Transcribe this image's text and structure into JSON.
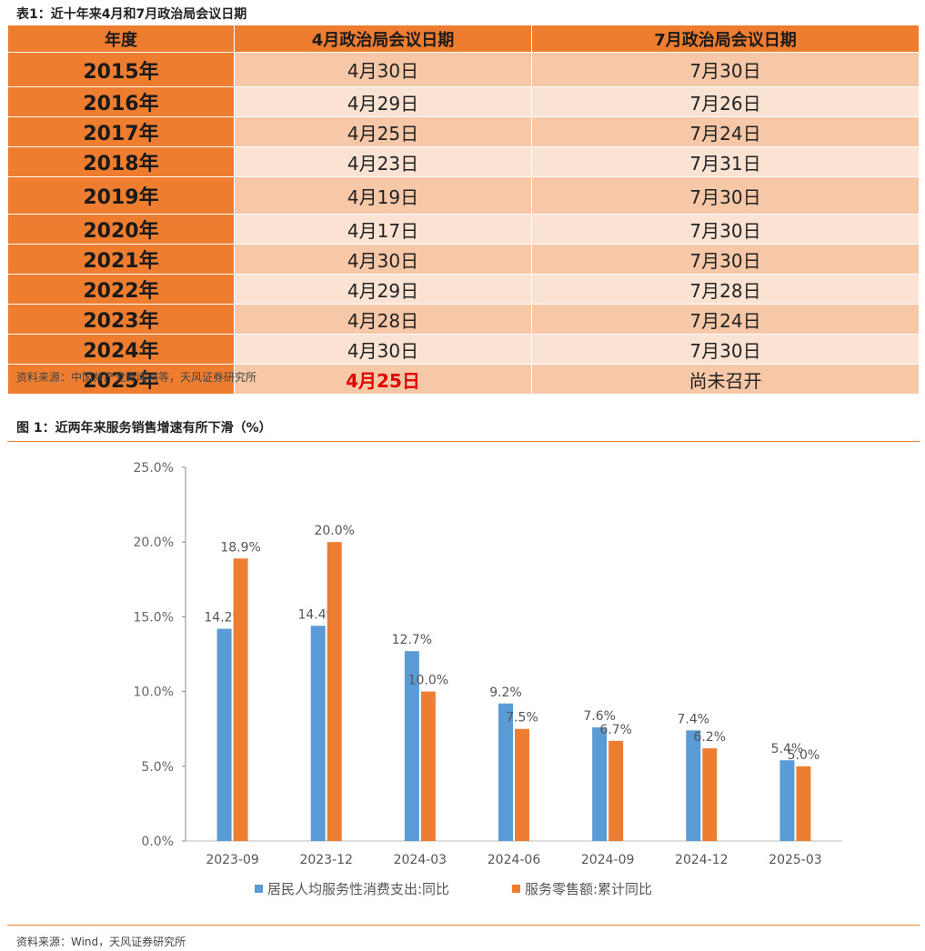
{
  "table": {
    "title": "表1：近十年来4月和7月政治局会议日期",
    "headers": [
      "年度",
      "4月政治局会议日期",
      "7月政治局会议日期"
    ],
    "rows": [
      {
        "year": "2015年",
        "april": "4月30日",
        "july": "7月30日"
      },
      {
        "year": "2016年",
        "april": "4月29日",
        "july": "7月26日"
      },
      {
        "year": "2017年",
        "april": "4月25日",
        "july": "7月24日"
      },
      {
        "year": "2018年",
        "april": "4月23日",
        "july": "7月31日"
      },
      {
        "year": "2019年",
        "april": "4月19日",
        "july": "7月30日"
      },
      {
        "year": "2020年",
        "april": "4月17日",
        "july": "7月30日"
      },
      {
        "year": "2021年",
        "april": "4月30日",
        "july": "7月30日"
      },
      {
        "year": "2022年",
        "april": "4月29日",
        "july": "7月28日"
      },
      {
        "year": "2023年",
        "april": "4月28日",
        "july": "7月24日"
      },
      {
        "year": "2024年",
        "april": "4月30日",
        "july": "7月30日"
      },
      {
        "year": "2025年",
        "april": "4月25日",
        "july": "尚未召开"
      }
    ],
    "highlight_color": "#e00000",
    "source": "资料来源：中国共产党新闻网等，天风证券研究所"
  },
  "figure": {
    "title": "图 1：近两年来服务销售增速有所下滑（%）",
    "source": "资料来源：Wind，天风证券研究所"
  },
  "chart_data": {
    "type": "bar",
    "categories": [
      "2023-09",
      "2023-12",
      "2024-03",
      "2024-06",
      "2024-09",
      "2024-12",
      "2025-03"
    ],
    "series": [
      {
        "name": "居民人均服务性消费支出:同比",
        "color": "#5b9bd5",
        "values": [
          14.2,
          14.4,
          12.7,
          9.2,
          7.6,
          7.4,
          5.4
        ],
        "labels": [
          "14.2%",
          "14.4%",
          "12.7%",
          "9.2%",
          "7.6%",
          "7.4%",
          "5.4%"
        ]
      },
      {
        "name": "服务零售额:累计同比",
        "color": "#ed7d31",
        "values": [
          18.9,
          20.0,
          10.0,
          7.5,
          6.7,
          6.2,
          5.0
        ],
        "labels": [
          "18.9%",
          "20.0%",
          "10.0%",
          "7.5%",
          "6.7%",
          "6.2%",
          "5.0%"
        ]
      }
    ],
    "ylim": [
      0,
      25
    ],
    "yticks": [
      0,
      5,
      10,
      15,
      20,
      25
    ],
    "ytick_labels": [
      "0.0%",
      "5.0%",
      "10.0%",
      "15.0%",
      "20.0%",
      "25.0%"
    ],
    "grid": false,
    "legend": "bottom"
  }
}
